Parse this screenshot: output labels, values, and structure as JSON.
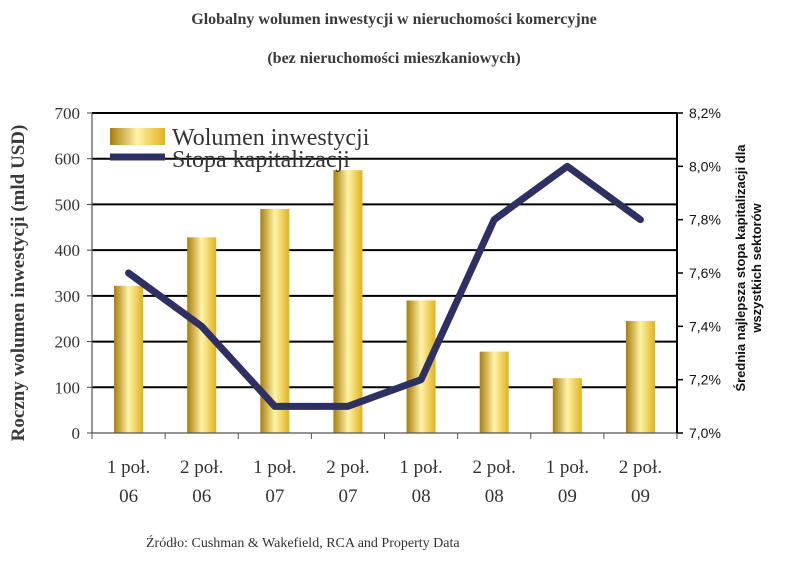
{
  "chart_data": {
    "type": "bar",
    "title": "Globalny wolumen inwestycji w nieruchomości komercyjne",
    "subtitle": "(bez nieruchomości mieszkaniowych)",
    "ylabel": "Roczny wolumen inwestycji (mld USD)",
    "y2label_line1": "Średnia najlepsza stopa kapitalizacji dla",
    "y2label_line2": "wszystkich sektorów",
    "source": "Źródło: Cushman & Wakefield, RCA and Property Data",
    "categories": [
      {
        "line1": "1 poł.",
        "line2": "06"
      },
      {
        "line1": "2 poł.",
        "line2": "06"
      },
      {
        "line1": "1 poł.",
        "line2": "07"
      },
      {
        "line1": "2 poł.",
        "line2": "07"
      },
      {
        "line1": "1 poł.",
        "line2": "08"
      },
      {
        "line1": "2 poł.",
        "line2": "08"
      },
      {
        "line1": "1 poł.",
        "line2": "09"
      },
      {
        "line1": "2 poł.",
        "line2": "09"
      }
    ],
    "series": [
      {
        "name": "Wolumen inwestycji",
        "kind": "bar",
        "axis": "left",
        "values": [
          322,
          428,
          490,
          575,
          290,
          178,
          120,
          245
        ]
      },
      {
        "name": "Stopa kapitalizacji",
        "kind": "line",
        "axis": "right",
        "values": [
          7.6,
          7.4,
          7.1,
          7.1,
          7.2,
          7.8,
          8.0,
          7.8
        ]
      }
    ],
    "ylim": [
      0,
      700
    ],
    "y_ticks": [
      "0",
      "100",
      "200",
      "300",
      "400",
      "500",
      "600",
      "700"
    ],
    "y2lim": [
      7.0,
      8.2
    ],
    "y2_ticks": [
      "7,0%",
      "7,2%",
      "7,4%",
      "7,6%",
      "7,8%",
      "8,0%",
      "8,2%"
    ],
    "grid": true,
    "legend_position": "top-left",
    "colors": {
      "bar": "#e0b21c",
      "bar_light": "#fff3a8",
      "bar_dark": "#a97d0a",
      "line": "#2e2f63",
      "grid": "#000000"
    }
  }
}
